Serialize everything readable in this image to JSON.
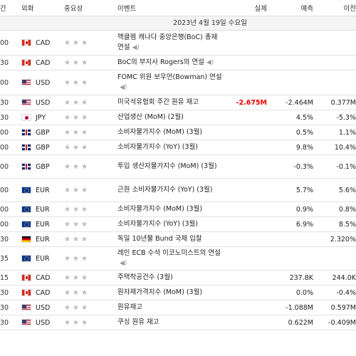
{
  "header": {
    "time": "간",
    "currency": "외화",
    "importance": "중요성",
    "event": "이벤트",
    "actual": "실제",
    "forecast": "예측",
    "previous": "이전"
  },
  "date": "2023년 4월 19일 수요일",
  "rows": [
    {
      "time": "00",
      "flag": "ca",
      "currency": "CAD",
      "event": "맥클렘 캐나다 중앙은행(BoC) 총재 연설",
      "speech": true,
      "actual": "",
      "forecast": "",
      "previous": ""
    },
    {
      "time": "30",
      "flag": "ca",
      "currency": "CAD",
      "event": "BoC의 부지사 Rogers의 연설",
      "speech": true,
      "actual": "",
      "forecast": "",
      "previous": ""
    },
    {
      "time": "00",
      "flag": "us",
      "currency": "USD",
      "event": "FOMC 위원 보우먼(Bowman) 연설",
      "speech": true,
      "actual": "",
      "forecast": "",
      "previous": ""
    },
    {
      "time": "30",
      "flag": "us",
      "currency": "USD",
      "event": "미국석유협회 주간 원유 재고",
      "speech": false,
      "actual": "-2.675M",
      "forecast": "-2.464M",
      "previous": "0.377M"
    },
    {
      "time": "30",
      "flag": "jp",
      "currency": "JPY",
      "event": "산업생산 (MoM) (2월)",
      "speech": false,
      "actual": "",
      "forecast": "4.5%",
      "previous": "-5.3%"
    },
    {
      "time": "00",
      "flag": "gb",
      "currency": "GBP",
      "event": "소비자물가지수 (MoM) (3월)",
      "speech": false,
      "actual": "",
      "forecast": "0.5%",
      "previous": "1.1%"
    },
    {
      "time": "00",
      "flag": "gb",
      "currency": "GBP",
      "event": "소비자물가지수 (YoY) (3월)",
      "speech": false,
      "actual": "",
      "forecast": "9.8%",
      "previous": "10.4%"
    },
    {
      "time": "00",
      "flag": "gb",
      "currency": "GBP",
      "event": "투입 생산자물가지수 (MoM) (3월)",
      "speech": false,
      "actual": "",
      "forecast": "-0.3%",
      "previous": "-0.1%"
    },
    {
      "time": "00",
      "flag": "eu",
      "currency": "EUR",
      "event": "근원 소비자물가지수 (YoY) (3월)",
      "speech": false,
      "actual": "",
      "forecast": "5.7%",
      "previous": "5.6%"
    },
    {
      "time": "00",
      "flag": "eu",
      "currency": "EUR",
      "event": "소비자물가지수 (MoM) (3월)",
      "speech": false,
      "actual": "",
      "forecast": "0.9%",
      "previous": "0.8%"
    },
    {
      "time": "00",
      "flag": "eu",
      "currency": "EUR",
      "event": "소비자물가지수 (YoY) (3월)",
      "speech": false,
      "actual": "",
      "forecast": "6.9%",
      "previous": "8.5%"
    },
    {
      "time": "30",
      "flag": "de",
      "currency": "EUR",
      "event": "독일 10년물 Bund 국채 입찰",
      "speech": false,
      "actual": "",
      "forecast": "",
      "previous": "2.320%"
    },
    {
      "time": "35",
      "flag": "eu",
      "currency": "EUR",
      "event": "레인 ECB 수석 이코노미스트의 연설",
      "speech": true,
      "actual": "",
      "forecast": "",
      "previous": ""
    },
    {
      "time": "15",
      "flag": "ca",
      "currency": "CAD",
      "event": "주택착공건수 (3월)",
      "speech": false,
      "actual": "",
      "forecast": "237.8K",
      "previous": "244.0K"
    },
    {
      "time": "30",
      "flag": "ca",
      "currency": "CAD",
      "event": "원자재가격지수 (MoM) (3월)",
      "speech": false,
      "actual": "",
      "forecast": "0.0%",
      "previous": "-0.4%"
    },
    {
      "time": "30",
      "flag": "us",
      "currency": "USD",
      "event": "원유재고",
      "speech": false,
      "actual": "",
      "forecast": "-1.088M",
      "previous": "0.597M"
    },
    {
      "time": "30",
      "flag": "us",
      "currency": "USD",
      "event": "쿠싱 원유 재고",
      "speech": false,
      "actual": "",
      "forecast": "0.622M",
      "previous": "-0.409M"
    }
  ],
  "icons": {
    "star": "star-icon",
    "speech": "speaker-icon"
  },
  "colors": {
    "negative": "#e00000",
    "star": "#bbbbbb"
  }
}
